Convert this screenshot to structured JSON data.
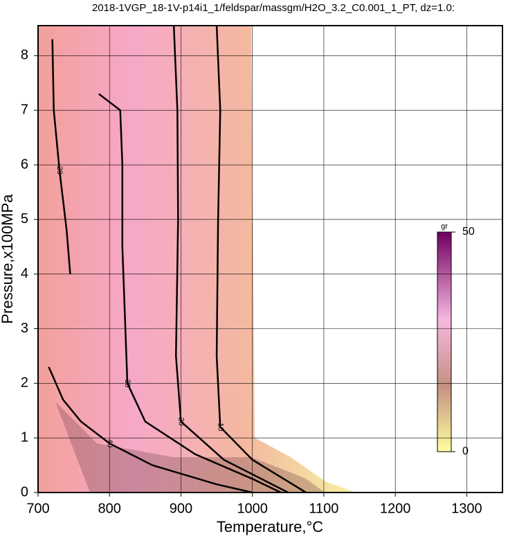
{
  "chart_data": {
    "type": "contour",
    "title": "2018-1VGP_18-1V-p14i1_1/feldspar/massgm/H2O_3.2_C0.001_1_PT, dz=1.0:",
    "x_label": "Temperature,°C",
    "y_label": "Pressure,x100MPa",
    "xlim": [
      700,
      1350
    ],
    "ylim": [
      0,
      8.55
    ],
    "xticks": [
      700,
      800,
      900,
      1000,
      1100,
      1200,
      1300
    ],
    "yticks": [
      0,
      1,
      2,
      3,
      4,
      5,
      6,
      7,
      8
    ],
    "grid": true,
    "contours": [
      {
        "level": 10,
        "x": [
          950,
          955,
          952,
          950,
          955,
          1000,
          1050,
          1075
        ],
        "y": [
          8.55,
          7,
          5,
          2.5,
          1.2,
          0.6,
          0.2,
          0
        ]
      },
      {
        "level": 20,
        "x": [
          890,
          895,
          896,
          893,
          900,
          960,
          1020,
          1050
        ],
        "y": [
          8.55,
          7,
          5,
          2.5,
          1.3,
          0.6,
          0.2,
          0
        ]
      },
      {
        "level": 30,
        "x": [
          785,
          815,
          818,
          818,
          825,
          850,
          920,
          1000,
          1040
        ],
        "y": [
          7.3,
          7,
          6,
          4.5,
          2,
          1.3,
          0.7,
          0.25,
          0
        ]
      },
      {
        "level": 40,
        "x": [
          715,
          735,
          760,
          800,
          860,
          950,
          1000
        ],
        "y": [
          2.3,
          1.7,
          1.3,
          0.9,
          0.5,
          0.15,
          0
        ]
      },
      {
        "level": 20,
        "x": [
          720,
          722,
          730,
          740,
          745
        ],
        "y": [
          8.3,
          7,
          5.9,
          4.8,
          4
        ]
      }
    ],
    "colorbar": {
      "label": "gr",
      "lim": [
        0,
        50
      ],
      "ticks": [
        0,
        50
      ]
    }
  }
}
